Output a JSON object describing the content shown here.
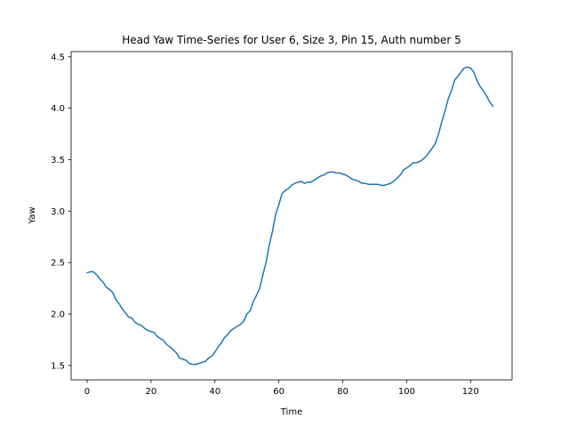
{
  "chart_data": {
    "type": "line",
    "title": "Head Yaw Time-Series for User 6, Size 3, Pin 15, Auth number 5",
    "xlabel": "Time",
    "ylabel": "Yaw",
    "xlim": [
      -5,
      133
    ],
    "ylim": [
      1.36,
      4.55
    ],
    "xticks": [
      0,
      20,
      40,
      60,
      80,
      100,
      120
    ],
    "yticks": [
      1.5,
      2.0,
      2.5,
      3.0,
      3.5,
      4.0,
      4.5
    ],
    "xtick_labels": [
      "0",
      "20",
      "40",
      "60",
      "80",
      "100",
      "120"
    ],
    "ytick_labels": [
      "1.5",
      "2.0",
      "2.5",
      "3.0",
      "3.5",
      "4.0",
      "4.5"
    ],
    "grid": false,
    "series": [
      {
        "color": "#1f77b4",
        "x": [
          0,
          1,
          2,
          3,
          4,
          5,
          6,
          7,
          8,
          9,
          10,
          11,
          12,
          13,
          14,
          15,
          16,
          17,
          18,
          19,
          20,
          21,
          22,
          23,
          24,
          25,
          26,
          27,
          28,
          29,
          30,
          31,
          32,
          33,
          34,
          35,
          36,
          37,
          38,
          39,
          40,
          41,
          42,
          43,
          44,
          45,
          46,
          47,
          48,
          49,
          50,
          51,
          52,
          53,
          54,
          55,
          56,
          57,
          58,
          59,
          60,
          61,
          62,
          63,
          64,
          65,
          66,
          67,
          68,
          69,
          70,
          71,
          72,
          73,
          74,
          75,
          76,
          77,
          78,
          79,
          80,
          81,
          82,
          83,
          84,
          85,
          86,
          87,
          88,
          89,
          90,
          91,
          92,
          93,
          94,
          95,
          96,
          97,
          98,
          99,
          100,
          101,
          102,
          103,
          104,
          105,
          106,
          107,
          108,
          109,
          110,
          111,
          112,
          113,
          114,
          115,
          116,
          117,
          118,
          119,
          120,
          121,
          122,
          123,
          124,
          125,
          126,
          127
        ],
        "y": [
          2.4,
          2.41,
          2.41,
          2.38,
          2.34,
          2.31,
          2.26,
          2.24,
          2.21,
          2.14,
          2.1,
          2.05,
          2.01,
          1.97,
          1.96,
          1.92,
          1.9,
          1.89,
          1.86,
          1.84,
          1.83,
          1.82,
          1.78,
          1.76,
          1.74,
          1.7,
          1.68,
          1.65,
          1.62,
          1.57,
          1.56,
          1.55,
          1.52,
          1.51,
          1.51,
          1.52,
          1.53,
          1.54,
          1.57,
          1.59,
          1.63,
          1.68,
          1.72,
          1.77,
          1.8,
          1.84,
          1.86,
          1.88,
          1.9,
          1.93,
          2.0,
          2.03,
          2.12,
          2.18,
          2.25,
          2.38,
          2.5,
          2.67,
          2.8,
          2.97,
          3.06,
          3.17,
          3.2,
          3.22,
          3.25,
          3.27,
          3.28,
          3.29,
          3.27,
          3.28,
          3.28,
          3.3,
          3.32,
          3.34,
          3.35,
          3.37,
          3.38,
          3.38,
          3.37,
          3.37,
          3.36,
          3.35,
          3.33,
          3.31,
          3.3,
          3.29,
          3.27,
          3.27,
          3.26,
          3.26,
          3.26,
          3.26,
          3.25,
          3.25,
          3.26,
          3.27,
          3.29,
          3.32,
          3.35,
          3.4,
          3.42,
          3.44,
          3.47,
          3.47,
          3.48,
          3.5,
          3.53,
          3.57,
          3.61,
          3.66,
          3.75,
          3.87,
          3.97,
          4.09,
          4.17,
          4.27,
          4.31,
          4.35,
          4.39,
          4.4,
          4.39,
          4.35,
          4.27,
          4.21,
          4.17,
          4.12,
          4.06,
          4.02
        ]
      }
    ]
  }
}
